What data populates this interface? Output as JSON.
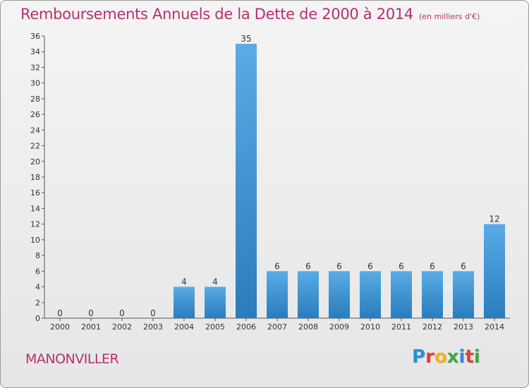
{
  "header": {
    "title": "Remboursements Annuels de la Dette de 2000 à 2014",
    "unit": "(en milliers d'€)"
  },
  "footer": {
    "commune": "MANONVILLER",
    "logo_text": "Proxiti"
  },
  "colors": {
    "title": "#b5306e",
    "bar_light": "#5aace6",
    "bar_dark": "#2a7cbb",
    "logo": [
      "#2a8fd6",
      "#e23d3d",
      "#f2b21b",
      "#3aa84a",
      "#2a8fd6",
      "#e23d3d",
      "#3aa84a"
    ]
  },
  "chart_data": {
    "type": "bar",
    "categories": [
      "2000",
      "2001",
      "2002",
      "2003",
      "2004",
      "2005",
      "2006",
      "2007",
      "2008",
      "2009",
      "2010",
      "2011",
      "2012",
      "2013",
      "2014"
    ],
    "values": [
      0,
      0,
      0,
      0,
      4,
      4,
      35,
      6,
      6,
      6,
      6,
      6,
      6,
      6,
      12
    ],
    "ylim": [
      0,
      36
    ],
    "yticks": [
      0,
      2,
      4,
      6,
      8,
      10,
      12,
      14,
      16,
      18,
      20,
      22,
      24,
      26,
      28,
      30,
      32,
      34,
      36
    ],
    "grid": false,
    "legend": "none"
  }
}
